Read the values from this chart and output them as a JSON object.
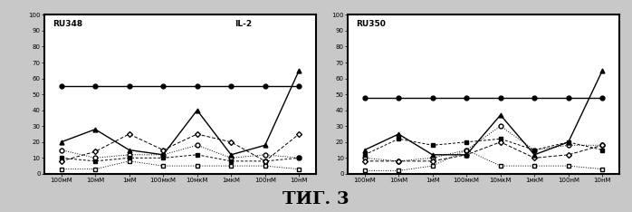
{
  "title_left": "RU348",
  "title_right": "RU350",
  "label_il2": "IL-2",
  "fig_label": "ΤИГ. 3",
  "xtick_labels": [
    "100мМ",
    "10мМ",
    "1мМ",
    "100мкМ",
    "10мкМ",
    "1мкМ",
    "100нМ",
    "10нМ"
  ],
  "ylim": [
    0,
    100
  ],
  "yticks": [
    0,
    10,
    20,
    30,
    40,
    50,
    60,
    70,
    80,
    90,
    100
  ],
  "left_series": {
    "filled_circle": [
      55,
      55,
      55,
      55,
      55,
      55,
      55,
      55
    ],
    "filled_triangle": [
      20,
      28,
      15,
      12,
      40,
      12,
      18,
      65
    ],
    "open_circle_dot": [
      15,
      10,
      12,
      12,
      18,
      10,
      12,
      10
    ],
    "open_square_dot": [
      3,
      3,
      8,
      5,
      5,
      5,
      5,
      3
    ],
    "filled_square_dot": [
      10,
      8,
      10,
      10,
      12,
      8,
      8,
      10
    ],
    "open_diamond_dot": [
      8,
      14,
      25,
      15,
      25,
      20,
      8,
      25
    ]
  },
  "right_series": {
    "filled_circle": [
      48,
      48,
      48,
      48,
      48,
      48,
      48,
      48
    ],
    "filled_triangle": [
      15,
      25,
      12,
      12,
      37,
      12,
      20,
      65
    ],
    "open_circle_dot": [
      10,
      8,
      10,
      15,
      30,
      15,
      18,
      18
    ],
    "open_square_dot": [
      2,
      2,
      5,
      15,
      5,
      5,
      5,
      3
    ],
    "filled_square_dot": [
      12,
      22,
      18,
      20,
      22,
      15,
      20,
      15
    ],
    "open_diamond_dot": [
      8,
      8,
      8,
      12,
      20,
      10,
      12,
      18
    ]
  }
}
